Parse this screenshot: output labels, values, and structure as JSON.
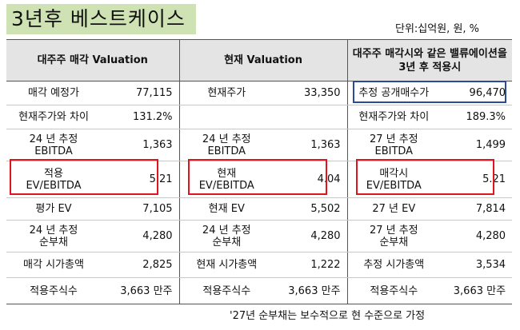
{
  "title": "3년후 베스트케이스",
  "unit": "단위:십억원, 원, %",
  "columns": [
    "대주주 매각 Valuation",
    "현재 Valuation",
    "대주주 매각시와 같은 밸류에이션을\n3년 후 적용시"
  ],
  "rows": [
    [
      [
        "매각 예정가",
        "77,115"
      ],
      [
        "현재주가",
        "33,350"
      ],
      [
        "추정 공개매수가",
        "96,470"
      ]
    ],
    [
      [
        "현재주가와 차이",
        "131.2%"
      ],
      [
        "",
        ""
      ],
      [
        "현재주가와 차이",
        "189.3%"
      ]
    ],
    [
      [
        "24 년 추정\nEBITDA",
        "1,363"
      ],
      [
        "24 년 추정\nEBITDA",
        "1,363"
      ],
      [
        "27 년 추정\nEBITDA",
        "1,499"
      ]
    ],
    [
      [
        "적용\nEV/EBITDA",
        "5.21"
      ],
      [
        "현재\nEV/EBITDA",
        "4.04"
      ],
      [
        "매각시\nEV/EBITDA",
        "5.21"
      ]
    ],
    [
      [
        "평가 EV",
        "7,105"
      ],
      [
        "현재 EV",
        "5,502"
      ],
      [
        "27 년 EV",
        "7,814"
      ]
    ],
    [
      [
        "24 년 추정\n순부채",
        "4,280"
      ],
      [
        "24 년 추정\n순부채",
        "4,280"
      ],
      [
        "27 년 추정\n순부채",
        "4,280"
      ]
    ],
    [
      [
        "매각 시가총액",
        "2,825"
      ],
      [
        "현재 시가총액",
        "1,222"
      ],
      [
        "추정 시가총액",
        "3,534"
      ]
    ],
    [
      [
        "적용주식수",
        "3,663 만주"
      ],
      [
        "적용주식수",
        "3,663 만주"
      ],
      [
        "적용주식수",
        "3,663 만주"
      ]
    ]
  ],
  "note": "'27년 순부채는 보수적으로 현 수준으로 가정",
  "colors": {
    "title_bg": "#cfe2b4",
    "header_bg": "#e4e4e4",
    "highlight_red": "#e0141c",
    "highlight_blue": "#2b4a9a"
  }
}
